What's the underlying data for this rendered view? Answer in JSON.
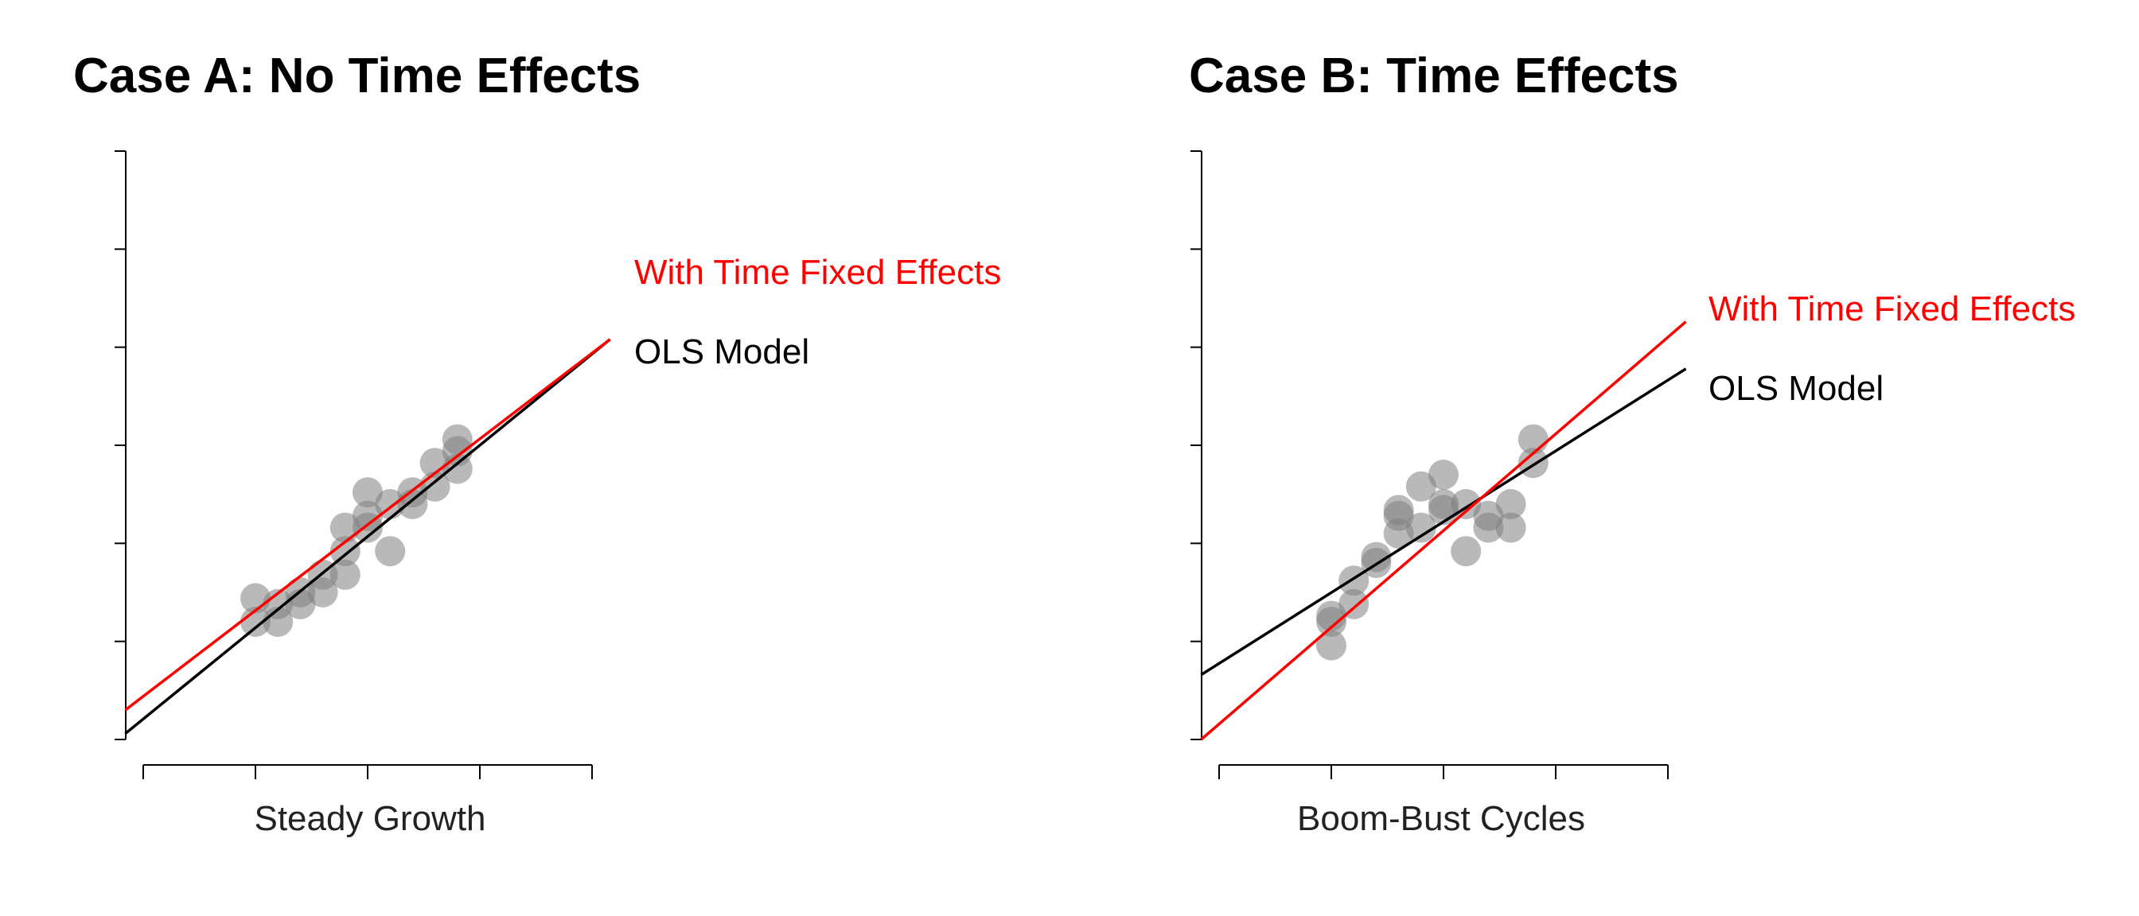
{
  "colors": {
    "fe_line": "#ff0000",
    "ols_line": "#000000",
    "points": "#808080",
    "axis": "#000000"
  },
  "chart_data": [
    {
      "type": "scatter",
      "title": "Case A: No Time Effects",
      "xlabel": "Steady Growth",
      "ylabel": "",
      "xlim": [
        0,
        1
      ],
      "ylim": [
        0,
        1
      ],
      "x_ticks": 5,
      "y_ticks": 7,
      "points": [
        {
          "x": 0.25,
          "y": 0.24
        },
        {
          "x": 0.25,
          "y": 0.2
        },
        {
          "x": 0.3,
          "y": 0.23
        },
        {
          "x": 0.3,
          "y": 0.2
        },
        {
          "x": 0.35,
          "y": 0.23
        },
        {
          "x": 0.35,
          "y": 0.25
        },
        {
          "x": 0.4,
          "y": 0.25
        },
        {
          "x": 0.4,
          "y": 0.28
        },
        {
          "x": 0.45,
          "y": 0.28
        },
        {
          "x": 0.45,
          "y": 0.32
        },
        {
          "x": 0.45,
          "y": 0.36
        },
        {
          "x": 0.5,
          "y": 0.36
        },
        {
          "x": 0.5,
          "y": 0.42
        },
        {
          "x": 0.55,
          "y": 0.32
        },
        {
          "x": 0.55,
          "y": 0.4
        },
        {
          "x": 0.6,
          "y": 0.4
        },
        {
          "x": 0.6,
          "y": 0.42
        },
        {
          "x": 0.65,
          "y": 0.43
        },
        {
          "x": 0.65,
          "y": 0.47
        },
        {
          "x": 0.7,
          "y": 0.46
        },
        {
          "x": 0.7,
          "y": 0.51
        },
        {
          "x": 0.7,
          "y": 0.49
        },
        {
          "x": 0.5,
          "y": 0.38
        }
      ],
      "lines": [
        {
          "name": "With Time Fixed Effects",
          "role": "fe",
          "x": [
            -0.04,
            1.04
          ],
          "y": [
            0.05,
            0.68
          ]
        },
        {
          "name": "OLS Model",
          "role": "ols",
          "x": [
            -0.04,
            1.04
          ],
          "y": [
            0.01,
            0.68
          ]
        }
      ]
    },
    {
      "type": "scatter",
      "title": "Case B: Time Effects",
      "xlabel": "Boom-Bust Cycles",
      "ylabel": "",
      "xlim": [
        0,
        1
      ],
      "ylim": [
        0,
        1
      ],
      "x_ticks": 5,
      "y_ticks": 7,
      "points": [
        {
          "x": 0.25,
          "y": 0.2
        },
        {
          "x": 0.25,
          "y": 0.16
        },
        {
          "x": 0.25,
          "y": 0.21
        },
        {
          "x": 0.3,
          "y": 0.23
        },
        {
          "x": 0.3,
          "y": 0.27
        },
        {
          "x": 0.35,
          "y": 0.3
        },
        {
          "x": 0.35,
          "y": 0.31
        },
        {
          "x": 0.4,
          "y": 0.35
        },
        {
          "x": 0.4,
          "y": 0.38
        },
        {
          "x": 0.4,
          "y": 0.39
        },
        {
          "x": 0.45,
          "y": 0.36
        },
        {
          "x": 0.45,
          "y": 0.43
        },
        {
          "x": 0.5,
          "y": 0.39
        },
        {
          "x": 0.5,
          "y": 0.45
        },
        {
          "x": 0.5,
          "y": 0.4
        },
        {
          "x": 0.55,
          "y": 0.32
        },
        {
          "x": 0.55,
          "y": 0.4
        },
        {
          "x": 0.6,
          "y": 0.36
        },
        {
          "x": 0.6,
          "y": 0.38
        },
        {
          "x": 0.65,
          "y": 0.36
        },
        {
          "x": 0.65,
          "y": 0.4
        },
        {
          "x": 0.7,
          "y": 0.47
        },
        {
          "x": 0.7,
          "y": 0.51
        }
      ],
      "lines": [
        {
          "name": "With Time Fixed Effects",
          "role": "fe",
          "x": [
            -0.04,
            1.04
          ],
          "y": [
            0.0,
            0.71
          ]
        },
        {
          "name": "OLS Model",
          "role": "ols",
          "x": [
            -0.04,
            1.04
          ],
          "y": [
            0.11,
            0.63
          ]
        }
      ]
    }
  ]
}
